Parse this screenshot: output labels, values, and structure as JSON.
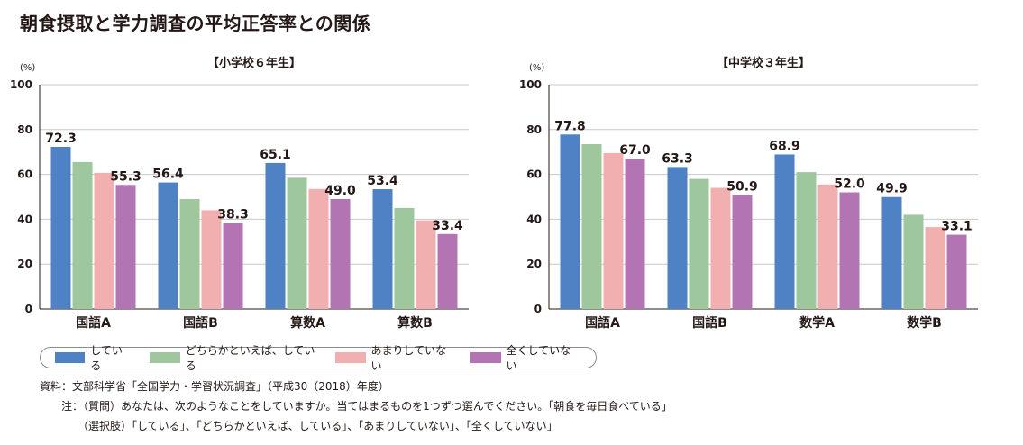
{
  "title": "朝食摂取と学力調査の平均正答率との関係",
  "series_colors": [
    "#4f82c4",
    "#9ec79e",
    "#f2afb0",
    "#b274b3"
  ],
  "legend": [
    "している",
    "どちらかといえば、している",
    "あまりしていない",
    "全くしていない"
  ],
  "notes": {
    "source": "資料：文部科学省「全国学力・学習状況調査」（平成30（2018）年度）",
    "note_question": "注：（質問）あなたは、次のようなことをしていますか。当てはまるものを1つずつ選んでください。「朝食を毎日食べている」",
    "note_options": "（選択肢）「している」、「どちらかといえば、している」、「あまりしていない」、「全くしていない」"
  },
  "chart_data": [
    {
      "type": "bar",
      "title": "【小学校６年生】",
      "ylabel": "(%)",
      "ylim": [
        0,
        100
      ],
      "yticks": [
        "0",
        "20",
        "40",
        "60",
        "80",
        "100"
      ],
      "grid": true,
      "categories": [
        "国語A",
        "国語B",
        "算数A",
        "算数B"
      ],
      "series": [
        {
          "name": "している",
          "values": [
            72.3,
            56.4,
            65.1,
            53.4
          ]
        },
        {
          "name": "どちらかといえば、している",
          "values": [
            65.5,
            49.0,
            58.5,
            45.0
          ]
        },
        {
          "name": "あまりしていない",
          "values": [
            60.7,
            44.0,
            53.5,
            39.5
          ]
        },
        {
          "name": "全くしていない",
          "values": [
            55.3,
            38.3,
            49.0,
            33.4
          ]
        }
      ],
      "data_labels": [
        {
          "category": 0,
          "series": 0,
          "text": "72.3"
        },
        {
          "category": 0,
          "series": 3,
          "text": "55.3"
        },
        {
          "category": 1,
          "series": 0,
          "text": "56.4"
        },
        {
          "category": 1,
          "series": 3,
          "text": "38.3"
        },
        {
          "category": 2,
          "series": 0,
          "text": "65.1"
        },
        {
          "category": 2,
          "series": 3,
          "text": "49.0"
        },
        {
          "category": 3,
          "series": 0,
          "text": "53.4"
        },
        {
          "category": 3,
          "series": 3,
          "text": "33.4"
        }
      ]
    },
    {
      "type": "bar",
      "title": "【中学校３年生】",
      "ylabel": "(%)",
      "ylim": [
        0,
        100
      ],
      "yticks": [
        "0",
        "20",
        "40",
        "60",
        "80",
        "100"
      ],
      "grid": true,
      "categories": [
        "国語A",
        "国語B",
        "数学A",
        "数学B"
      ],
      "series": [
        {
          "name": "している",
          "values": [
            77.8,
            63.3,
            68.9,
            49.9
          ]
        },
        {
          "name": "どちらかといえば、している",
          "values": [
            73.5,
            58.0,
            61.0,
            42.0
          ]
        },
        {
          "name": "あまりしていない",
          "values": [
            69.5,
            54.0,
            55.5,
            36.5
          ]
        },
        {
          "name": "全くしていない",
          "values": [
            67.0,
            50.9,
            52.0,
            33.1
          ]
        }
      ],
      "data_labels": [
        {
          "category": 0,
          "series": 0,
          "text": "77.8"
        },
        {
          "category": 0,
          "series": 3,
          "text": "67.0"
        },
        {
          "category": 1,
          "series": 0,
          "text": "63.3"
        },
        {
          "category": 1,
          "series": 3,
          "text": "50.9"
        },
        {
          "category": 2,
          "series": 0,
          "text": "68.9"
        },
        {
          "category": 2,
          "series": 3,
          "text": "52.0"
        },
        {
          "category": 3,
          "series": 0,
          "text": "49.9"
        },
        {
          "category": 3,
          "series": 3,
          "text": "33.1"
        }
      ]
    }
  ]
}
